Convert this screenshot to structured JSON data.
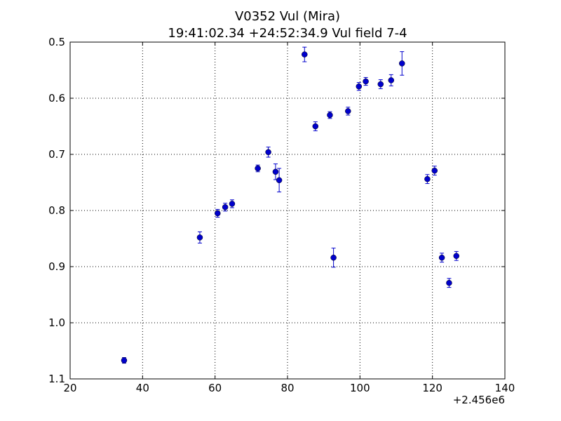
{
  "chart_data": {
    "type": "scatter",
    "title": "V0352 Vul (Mira)",
    "subtitle": "19:41:02.34 +24:52:34.9 Vul field 7-4",
    "xlabel": "",
    "ylabel": "",
    "x_offset_label": "+2.456e6",
    "xlim": [
      20,
      140
    ],
    "ylim": [
      1.1,
      0.5
    ],
    "y_inverted": true,
    "x_ticks": [
      20,
      40,
      60,
      80,
      100,
      120,
      140
    ],
    "x_tick_labels": [
      "20",
      "40",
      "60",
      "80",
      "100",
      "120",
      "140"
    ],
    "y_ticks": [
      0.5,
      0.6,
      0.7,
      0.8,
      0.9,
      1.0,
      1.1
    ],
    "y_tick_labels": [
      "0.5",
      "0.6",
      "0.7",
      "0.8",
      "0.9",
      "1.0",
      "1.1"
    ],
    "grid": true,
    "marker_color": "#0000cc",
    "points": [
      {
        "x": 34.9,
        "y": 1.067,
        "err": 0.005
      },
      {
        "x": 55.8,
        "y": 0.848,
        "err": 0.01
      },
      {
        "x": 60.7,
        "y": 0.805,
        "err": 0.007
      },
      {
        "x": 62.8,
        "y": 0.794,
        "err": 0.007
      },
      {
        "x": 64.7,
        "y": 0.788,
        "err": 0.007
      },
      {
        "x": 71.8,
        "y": 0.725,
        "err": 0.006
      },
      {
        "x": 74.7,
        "y": 0.696,
        "err": 0.009
      },
      {
        "x": 76.7,
        "y": 0.731,
        "err": 0.014
      },
      {
        "x": 77.7,
        "y": 0.746,
        "err": 0.021
      },
      {
        "x": 84.7,
        "y": 0.522,
        "err": 0.013
      },
      {
        "x": 87.7,
        "y": 0.65,
        "err": 0.008
      },
      {
        "x": 91.7,
        "y": 0.63,
        "err": 0.006
      },
      {
        "x": 92.7,
        "y": 0.884,
        "err": 0.017
      },
      {
        "x": 96.7,
        "y": 0.623,
        "err": 0.007
      },
      {
        "x": 99.7,
        "y": 0.579,
        "err": 0.007
      },
      {
        "x": 101.6,
        "y": 0.57,
        "err": 0.007
      },
      {
        "x": 105.7,
        "y": 0.575,
        "err": 0.008
      },
      {
        "x": 108.6,
        "y": 0.568,
        "err": 0.01
      },
      {
        "x": 111.6,
        "y": 0.538,
        "err": 0.021
      },
      {
        "x": 118.6,
        "y": 0.744,
        "err": 0.008
      },
      {
        "x": 120.6,
        "y": 0.729,
        "err": 0.008
      },
      {
        "x": 122.6,
        "y": 0.884,
        "err": 0.008
      },
      {
        "x": 124.6,
        "y": 0.929,
        "err": 0.008
      },
      {
        "x": 126.6,
        "y": 0.881,
        "err": 0.008
      }
    ]
  }
}
